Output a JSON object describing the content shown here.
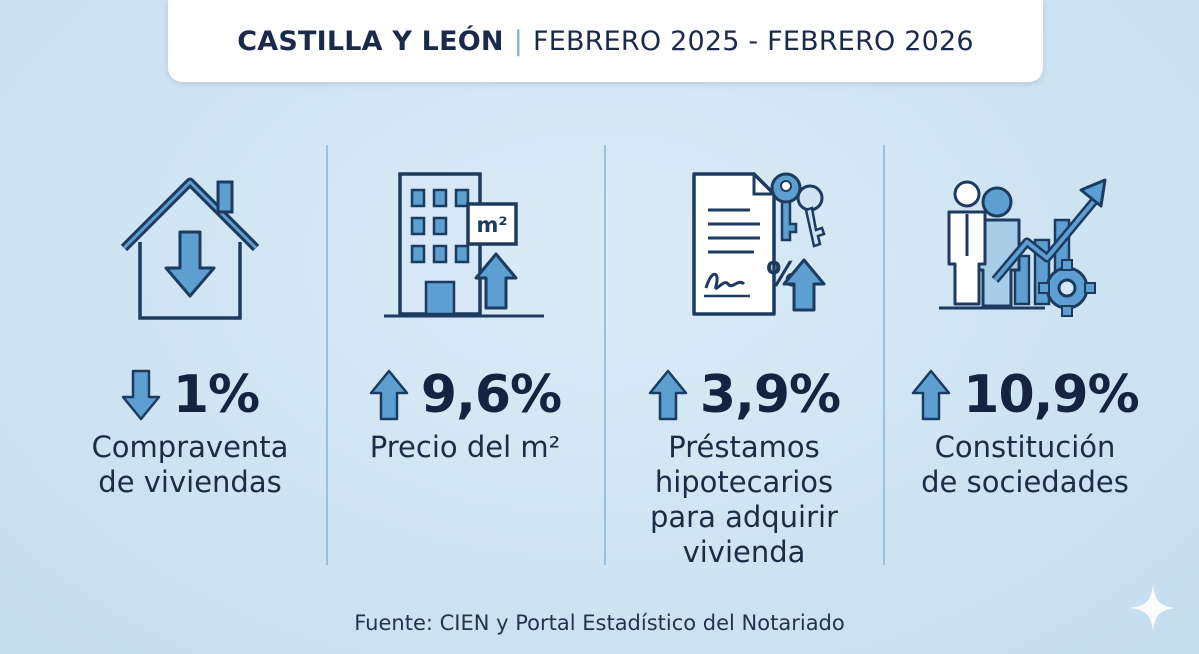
{
  "header": {
    "region": "CASTILLA Y LEÓN",
    "separator": "|",
    "period": "FEBRERO 2025 - FEBRERO 2026"
  },
  "stats": [
    {
      "direction": "down",
      "value": "1%",
      "label_lines": [
        "Compraventa",
        "de viviendas"
      ],
      "icon": "house-down-arrow-icon"
    },
    {
      "direction": "up",
      "value": "9,6%",
      "label_lines": [
        "Precio del m²"
      ],
      "icon": "building-m2-up-icon",
      "icon_text": "m²"
    },
    {
      "direction": "up",
      "value": "3,9%",
      "label_lines": [
        "Préstamos",
        "hipotecarios",
        "para adquirir",
        "vivienda"
      ],
      "icon": "mortgage-document-keys-icon",
      "icon_text": "%"
    },
    {
      "direction": "up",
      "value": "10,9%",
      "label_lines": [
        "Constitución",
        "de sociedades"
      ],
      "icon": "business-growth-gear-icon"
    }
  ],
  "source": "Fuente: CIEN y Portal Estadístico del Notariado",
  "colors": {
    "navy": "#1d3a5f",
    "arrow_fill": "#5d9fd1",
    "icon_fill": "#cfe3f2",
    "background": "#d6e9f5"
  }
}
